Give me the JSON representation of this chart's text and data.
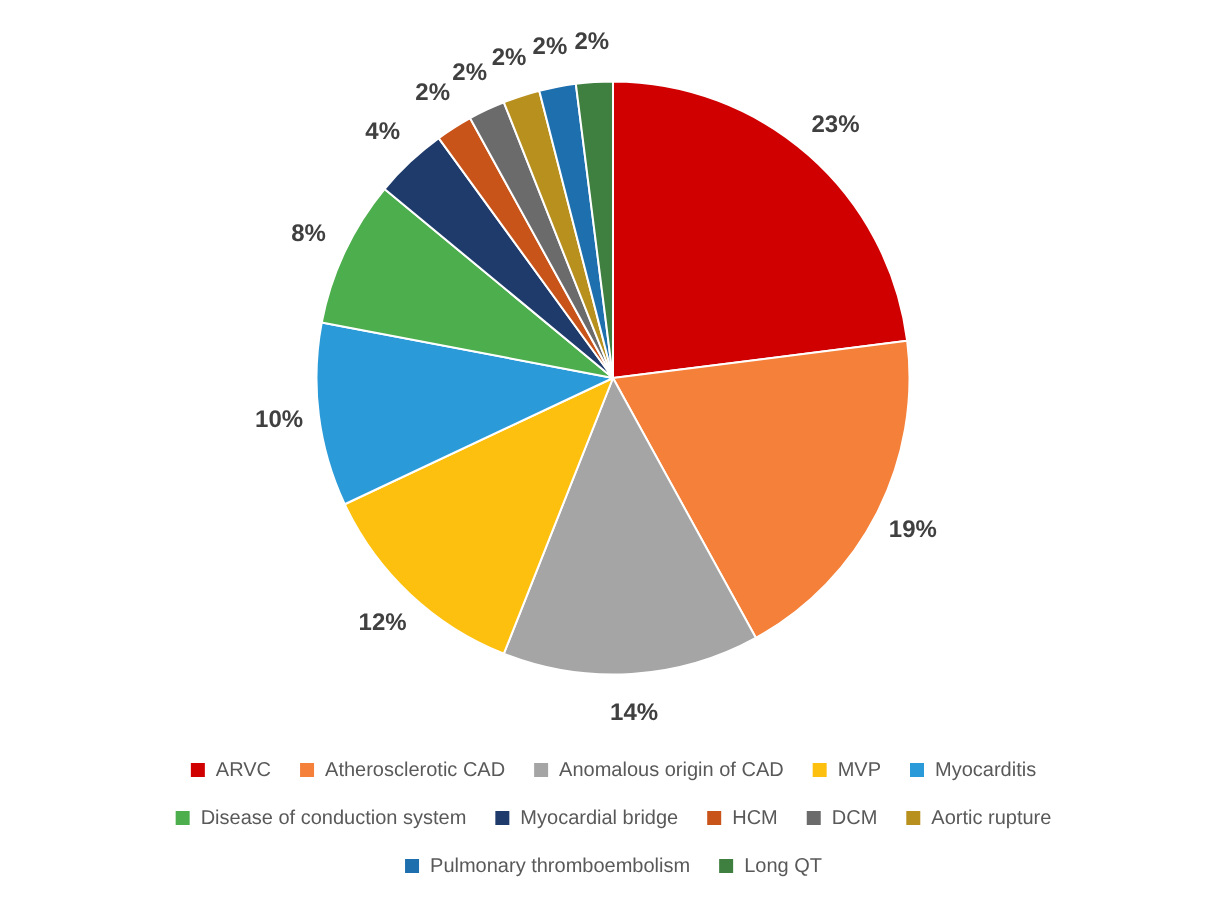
{
  "chart_data": {
    "type": "pie",
    "categories": [
      "ARVC",
      "Atherosclerotic CAD",
      "Anomalous origin of CAD",
      "MVP",
      "Myocarditis",
      "Disease of conduction system",
      "Myocardial bridge",
      "HCM",
      "DCM",
      "Aortic rupture",
      "Pulmonary thromboembolism",
      "Long QT"
    ],
    "values": [
      23,
      19,
      14,
      12,
      10,
      8,
      4,
      2,
      2,
      2,
      2,
      2
    ],
    "colors": [
      "#d00000",
      "#f4803a",
      "#a5a5a5",
      "#fdc00f",
      "#2a9ad8",
      "#4cae4c",
      "#1f3b6b",
      "#c9541a",
      "#6b6b6b",
      "#b8901e",
      "#1e6fae",
      "#3f7f3f"
    ],
    "value_labels": [
      "23%",
      "19%",
      "14%",
      "12%",
      "10%",
      "8%",
      "4%",
      "2%",
      "2%",
      "2%",
      "2%",
      "2%"
    ],
    "legend": "bottom"
  }
}
